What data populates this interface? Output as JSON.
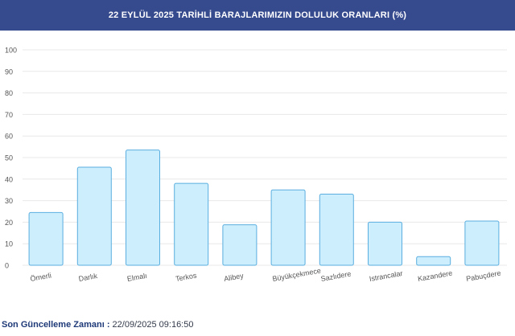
{
  "header": {
    "title": "22 EYLÜL 2025 TARİHLİ BARAJLARIMIZIN DOLULUK ORANLARI (%)"
  },
  "chart_data": {
    "type": "bar",
    "title": "22 EYLÜL 2025 TARİHLİ BARAJLARIMIZIN DOLULUK ORANLARI (%)",
    "xlabel": "",
    "ylabel": "",
    "ylim": [
      0,
      100
    ],
    "yticks": [
      "0",
      "10",
      "20",
      "30",
      "40",
      "50",
      "60",
      "70",
      "80",
      "90",
      "100"
    ],
    "grid": true,
    "categories": [
      "Ömerli",
      "Darlık",
      "Elmalı",
      "Terkos",
      "Alibey",
      "Büyükçekmece",
      "Sazlıdere",
      "Istrancalar",
      "Kazandere",
      "Pabuçdere"
    ],
    "values": [
      24.5,
      45.5,
      53.5,
      38,
      18.8,
      35,
      33,
      20,
      4,
      20.5
    ],
    "colors": {
      "bar_fill": "#cdeefc",
      "bar_stroke": "#5aaee0",
      "grid": "#e8e8e8",
      "tick": "#555555"
    }
  },
  "footer": {
    "label": "Son Güncelleme Zamanı : ",
    "value": "22/09/2025 09:16:50"
  }
}
